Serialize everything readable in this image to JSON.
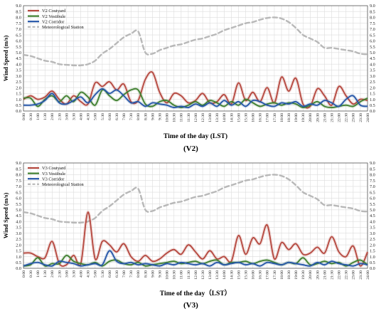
{
  "chart_data": [
    {
      "type": "line",
      "panel_label": "(V2)",
      "xlabel": "Time of the day (LST)",
      "ylabel": "Wind Speed (m/s)",
      "ylim": [
        0,
        9
      ],
      "yticks": [
        "0.0",
        "0.5",
        "1.0",
        "1.5",
        "2.0",
        "2.5",
        "3.0",
        "3.5",
        "4.0",
        "4.5",
        "5.0",
        "5.5",
        "6.0",
        "6.5",
        "7.0",
        "7.5",
        "8.0",
        "8.5",
        "9.0"
      ],
      "categories": [
        "0:00",
        "0:30",
        "1:00",
        "1:30",
        "2:00",
        "2:30",
        "3:00",
        "3:30",
        "4:00",
        "4:30",
        "5:00",
        "5:30",
        "6:00",
        "6:30",
        "7:00",
        "7:30",
        "8:00",
        "8:30",
        "9:00",
        "9:30",
        "10:00",
        "10:30",
        "11:00",
        "11:30",
        "12:00",
        "12:30",
        "13:00",
        "13:30",
        "14:00",
        "14:30",
        "15:00",
        "15:30",
        "16:00",
        "16:30",
        "17:00",
        "17:30",
        "18:00",
        "18:30",
        "19:00",
        "19:30",
        "20:00",
        "20:30",
        "21:00",
        "21:30",
        "22:00",
        "22:30",
        "23:00",
        "23:30",
        "24:00"
      ],
      "grid": true,
      "legend_position": "top-left",
      "series": [
        {
          "name": "V2 Coutyard",
          "color": "#b5473e",
          "style": "solid",
          "values": [
            1.0,
            1.3,
            1.0,
            1.2,
            1.7,
            1.0,
            0.6,
            1.3,
            0.8,
            0.6,
            2.4,
            2.1,
            2.5,
            1.8,
            2.3,
            0.8,
            0.9,
            2.7,
            3.3,
            1.6,
            0.7,
            1.5,
            1.3,
            0.7,
            0.9,
            1.5,
            0.7,
            0.8,
            1.4,
            0.6,
            2.4,
            0.9,
            1.6,
            0.8,
            2.0,
            0.7,
            2.9,
            1.7,
            2.8,
            0.6,
            0.4,
            1.9,
            1.3,
            0.5,
            2.1,
            1.3,
            0.6,
            1.0,
            0.9
          ]
        },
        {
          "name": "V2 Vestibule",
          "color": "#3f7f2f",
          "style": "solid",
          "values": [
            1.1,
            1.1,
            0.4,
            1.0,
            1.3,
            0.8,
            1.3,
            0.8,
            1.6,
            1.2,
            0.5,
            1.8,
            1.3,
            0.9,
            1.4,
            1.8,
            1.8,
            0.6,
            0.4,
            0.8,
            0.9,
            0.5,
            0.3,
            0.5,
            0.8,
            0.5,
            0.9,
            0.7,
            0.4,
            0.8,
            0.5,
            1.0,
            0.7,
            0.4,
            0.6,
            0.7,
            0.5,
            0.7,
            0.6,
            0.3,
            0.5,
            0.8,
            0.4,
            0.3,
            0.4,
            0.5,
            0.4,
            0.8,
            1.1
          ]
        },
        {
          "name": "V2 Corridor",
          "color": "#2556a8",
          "style": "solid",
          "values": [
            0.5,
            0.5,
            0.6,
            0.9,
            1.5,
            0.7,
            0.6,
            0.9,
            1.2,
            0.7,
            1.4,
            1.9,
            1.5,
            1.8,
            1.3,
            0.7,
            0.8,
            0.4,
            0.7,
            0.6,
            0.5,
            0.3,
            0.4,
            0.3,
            0.6,
            0.4,
            0.7,
            0.4,
            0.9,
            0.5,
            0.8,
            0.4,
            0.9,
            0.8,
            0.5,
            0.4,
            0.7,
            0.6,
            0.8,
            0.4,
            0.6,
            0.5,
            0.9,
            0.7,
            0.4,
            1.0,
            1.3,
            0.5,
            0.4
          ]
        },
        {
          "name": "Meteorological Station",
          "color": "#b8b8b8",
          "style": "dashed",
          "values": [
            4.8,
            4.7,
            4.5,
            4.3,
            4.2,
            4.0,
            3.95,
            3.9,
            3.9,
            4.0,
            4.3,
            4.9,
            5.3,
            5.8,
            6.3,
            6.6,
            6.8,
            5.0,
            4.9,
            5.2,
            5.4,
            5.6,
            5.7,
            5.9,
            6.1,
            6.2,
            6.4,
            6.6,
            6.9,
            7.1,
            7.3,
            7.5,
            7.6,
            7.8,
            7.95,
            8.0,
            7.9,
            7.6,
            7.1,
            6.5,
            6.2,
            5.9,
            5.4,
            5.4,
            5.3,
            5.2,
            5.1,
            4.9,
            4.85
          ]
        }
      ]
    },
    {
      "type": "line",
      "panel_label": "(V3)",
      "xlabel": "Time of the day（LST）",
      "ylabel": "Wind Speed (m/s)",
      "ylim": [
        0,
        9
      ],
      "yticks": [
        "0.0",
        "0.5",
        "1.0",
        "1.5",
        "2.0",
        "2.5",
        "3.0",
        "3.5",
        "4.0",
        "4.5",
        "5.0",
        "5.5",
        "6.0",
        "6.5",
        "7.0",
        "7.5",
        "8.0",
        "8.5",
        "9.0"
      ],
      "categories": [
        "0:00",
        "0:30",
        "1:00",
        "1:30",
        "2:00",
        "2:30",
        "3:00",
        "3:30",
        "4:00",
        "4:30",
        "5:00",
        "5:30",
        "6:00",
        "6:30",
        "7:00",
        "7:30",
        "8:00",
        "8:30",
        "9:00",
        "9:30",
        "10:00",
        "10:30",
        "11:00",
        "11:30",
        "12:00",
        "12:30",
        "13:00",
        "13:30",
        "14:00",
        "14:30",
        "15:00",
        "15:30",
        "16:00",
        "16:30",
        "17:00",
        "17:30",
        "18:00",
        "18:30",
        "19:00",
        "19:30",
        "20:00",
        "20:30",
        "21:00",
        "21:30",
        "22:00",
        "22:30",
        "23:00",
        "23:30",
        "24:00"
      ],
      "grid": true,
      "legend_position": "top-left",
      "series": [
        {
          "name": "V3 Coutyard",
          "color": "#b5473e",
          "style": "solid",
          "values": [
            1.3,
            1.3,
            1.0,
            0.9,
            2.3,
            0.4,
            0.3,
            1.1,
            0.4,
            4.8,
            0.8,
            2.3,
            2.0,
            1.4,
            2.1,
            1.0,
            0.6,
            1.1,
            0.6,
            0.8,
            1.3,
            1.6,
            1.2,
            2.0,
            1.4,
            0.8,
            1.5,
            0.8,
            1.0,
            0.6,
            2.8,
            1.2,
            2.6,
            2.1,
            3.7,
            0.8,
            2.2,
            1.6,
            2.1,
            1.2,
            1.3,
            1.8,
            1.3,
            2.7,
            1.4,
            1.0,
            1.9,
            0.2,
            1.4
          ]
        },
        {
          "name": "V3 Vestibule",
          "color": "#3f7f2f",
          "style": "solid",
          "values": [
            0.2,
            0.3,
            0.9,
            0.2,
            0.4,
            0.4,
            1.1,
            0.6,
            0.4,
            0.3,
            0.5,
            0.2,
            0.6,
            0.7,
            0.4,
            0.3,
            0.5,
            0.2,
            0.3,
            0.4,
            0.5,
            0.6,
            0.4,
            0.5,
            0.6,
            0.4,
            0.6,
            0.7,
            0.3,
            0.5,
            0.5,
            0.6,
            0.4,
            0.6,
            0.7,
            0.5,
            0.3,
            0.5,
            0.4,
            0.9,
            0.3,
            0.4,
            0.6,
            0.4,
            0.5,
            0.2,
            0.5,
            0.7,
            0.3
          ]
        },
        {
          "name": "V3 Corridor",
          "color": "#2556a8",
          "style": "solid",
          "values": [
            0.2,
            0.4,
            0.5,
            0.3,
            0.2,
            0.6,
            0.5,
            0.4,
            0.2,
            0.3,
            0.4,
            0.3,
            1.5,
            0.6,
            0.4,
            0.5,
            0.3,
            0.4,
            0.3,
            0.2,
            0.4,
            0.3,
            0.5,
            0.4,
            0.3,
            0.4,
            0.2,
            0.5,
            0.3,
            0.4,
            0.5,
            0.3,
            0.4,
            0.2,
            0.5,
            0.4,
            0.3,
            0.5,
            0.4,
            0.3,
            0.2,
            0.5,
            0.3,
            0.6,
            0.4,
            0.3,
            0.2,
            0.4,
            0.3
          ]
        },
        {
          "name": "Meteorological Station",
          "color": "#b8b8b8",
          "style": "dashed",
          "values": [
            4.8,
            4.7,
            4.5,
            4.3,
            4.2,
            4.0,
            3.95,
            3.9,
            3.9,
            4.0,
            4.3,
            4.9,
            5.3,
            5.8,
            6.3,
            6.6,
            6.8,
            5.0,
            4.9,
            5.2,
            5.4,
            5.6,
            5.7,
            5.9,
            6.1,
            6.2,
            6.4,
            6.6,
            6.9,
            7.1,
            7.3,
            7.5,
            7.6,
            7.8,
            7.95,
            8.0,
            7.9,
            7.6,
            7.1,
            6.5,
            6.2,
            5.9,
            5.4,
            5.4,
            5.3,
            5.2,
            5.1,
            4.9,
            4.85
          ]
        }
      ]
    }
  ]
}
